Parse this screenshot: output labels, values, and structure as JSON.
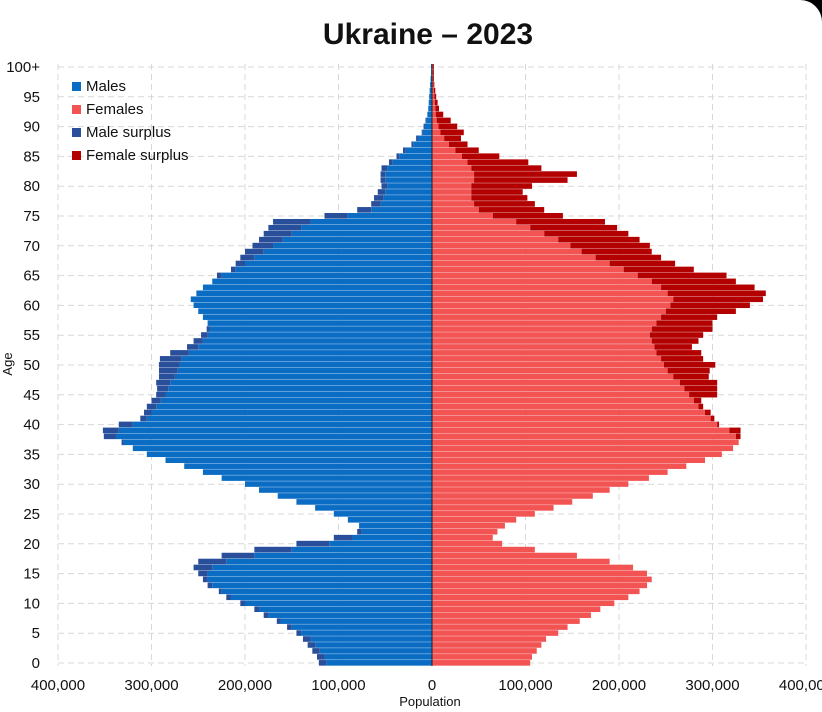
{
  "chart_data": {
    "type": "bar",
    "orientation": "horizontal-population-pyramid",
    "title": "Ukraine – 2023",
    "xlabel": "Population",
    "ylabel": "Age",
    "xlim": [
      -400000,
      400000
    ],
    "ylim": [
      0,
      101
    ],
    "x_ticks": [
      -400000,
      -300000,
      -200000,
      -100000,
      0,
      100000,
      200000,
      300000,
      400000
    ],
    "x_tick_labels": [
      "400,000",
      "300,000",
      "200,000",
      "100,000",
      "0",
      "100,000",
      "200,000",
      "300,000",
      "400,000"
    ],
    "y_ticks": [
      0,
      5,
      10,
      15,
      20,
      25,
      30,
      35,
      40,
      45,
      50,
      55,
      60,
      65,
      70,
      75,
      80,
      85,
      90,
      95,
      100
    ],
    "y_tick_labels": [
      "0",
      "5",
      "10",
      "15",
      "20",
      "25",
      "30",
      "35",
      "40",
      "45",
      "50",
      "55",
      "60",
      "65",
      "70",
      "75",
      "80",
      "85",
      "90",
      "95",
      "100+"
    ],
    "grid": true,
    "legend": {
      "position": "top-left",
      "entries": [
        {
          "label": "Males",
          "color": "#0b6cc4"
        },
        {
          "label": "Females",
          "color": "#f25454"
        },
        {
          "label": "Male surplus",
          "color": "#2a4f9a"
        },
        {
          "label": "Female surplus",
          "color": "#b30000"
        }
      ]
    },
    "ages": [
      0,
      1,
      2,
      3,
      4,
      5,
      6,
      7,
      8,
      9,
      10,
      11,
      12,
      13,
      14,
      15,
      16,
      17,
      18,
      19,
      20,
      21,
      22,
      23,
      24,
      25,
      26,
      27,
      28,
      29,
      30,
      31,
      32,
      33,
      34,
      35,
      36,
      37,
      38,
      39,
      40,
      41,
      42,
      43,
      44,
      45,
      46,
      47,
      48,
      49,
      50,
      51,
      52,
      53,
      54,
      55,
      56,
      57,
      58,
      59,
      60,
      61,
      62,
      63,
      64,
      65,
      66,
      67,
      68,
      69,
      70,
      71,
      72,
      73,
      74,
      75,
      76,
      77,
      78,
      79,
      80,
      81,
      82,
      83,
      84,
      85,
      86,
      87,
      88,
      89,
      90,
      91,
      92,
      93,
      94,
      95,
      96,
      97,
      98,
      99,
      100
    ],
    "series": [
      {
        "name": "Males",
        "values": [
          113000,
          115000,
          120000,
          125000,
          130000,
          140000,
          150000,
          162000,
          175000,
          185000,
          200000,
          215000,
          225000,
          235000,
          240000,
          240000,
          235000,
          220000,
          190000,
          150000,
          110000,
          85000,
          75000,
          78000,
          90000,
          105000,
          125000,
          145000,
          165000,
          185000,
          200000,
          225000,
          245000,
          265000,
          285000,
          305000,
          320000,
          330000,
          338000,
          335000,
          320000,
          305000,
          300000,
          295000,
          290000,
          285000,
          282000,
          280000,
          275000,
          272000,
          270000,
          268000,
          260000,
          250000,
          245000,
          240000,
          238000,
          240000,
          245000,
          250000,
          255000,
          258000,
          252000,
          245000,
          235000,
          225000,
          210000,
          200000,
          190000,
          180000,
          170000,
          160000,
          150000,
          140000,
          130000,
          90000,
          65000,
          55000,
          52000,
          50000,
          48000,
          50000,
          50000,
          48000,
          42000,
          35000,
          28000,
          20000,
          15000,
          10000,
          8000,
          6000,
          5000,
          4000,
          3500,
          3000,
          2500,
          2000,
          1500,
          1000,
          1000
        ]
      },
      {
        "name": "Females",
        "values": [
          105000,
          107000,
          112000,
          117000,
          122000,
          135000,
          145000,
          158000,
          170000,
          180000,
          195000,
          210000,
          222000,
          230000,
          235000,
          230000,
          215000,
          190000,
          155000,
          110000,
          75000,
          65000,
          70000,
          78000,
          90000,
          110000,
          130000,
          150000,
          172000,
          190000,
          210000,
          232000,
          252000,
          272000,
          292000,
          310000,
          322000,
          328000,
          325000,
          318000,
          305000,
          298000,
          292000,
          285000,
          280000,
          275000,
          270000,
          265000,
          258000,
          252000,
          248000,
          245000,
          240000,
          238000,
          235000,
          233000,
          235000,
          240000,
          245000,
          250000,
          255000,
          258000,
          252000,
          245000,
          235000,
          220000,
          205000,
          190000,
          175000,
          160000,
          148000,
          135000,
          120000,
          105000,
          90000,
          65000,
          50000,
          45000,
          42000,
          42000,
          42000,
          45000,
          45000,
          42000,
          38000,
          32000,
          25000,
          18000,
          13000,
          9000,
          7000,
          5000,
          4000,
          3500,
          3000,
          2500,
          2000,
          1500,
          1000,
          1000,
          1000
        ]
      },
      {
        "name": "Male surplus",
        "values": [
          8000,
          8000,
          8000,
          8000,
          8000,
          5000,
          5000,
          4000,
          5000,
          5000,
          5000,
          5000,
          3000,
          5000,
          5000,
          10000,
          20000,
          30000,
          35000,
          40000,
          35000,
          20000,
          5000,
          0,
          0,
          0,
          0,
          0,
          0,
          0,
          0,
          0,
          0,
          0,
          0,
          0,
          0,
          2000,
          13000,
          17000,
          15000,
          7000,
          8000,
          10000,
          10000,
          10000,
          12000,
          15000,
          17000,
          20000,
          22000,
          23000,
          20000,
          12000,
          10000,
          7000,
          3000,
          0,
          0,
          0,
          0,
          0,
          0,
          0,
          0,
          5000,
          5000,
          10000,
          15000,
          20000,
          22000,
          25000,
          30000,
          35000,
          40000,
          25000,
          15000,
          10000,
          10000,
          8000,
          6000,
          5000,
          5000,
          6000,
          4000,
          3000,
          3000,
          2000,
          2000,
          1000,
          1000,
          1000,
          0,
          0,
          0,
          0,
          0,
          0,
          0,
          0,
          0
        ]
      },
      {
        "name": "Female surplus",
        "values": [
          0,
          0,
          0,
          0,
          0,
          0,
          0,
          0,
          0,
          0,
          0,
          0,
          0,
          0,
          0,
          0,
          0,
          0,
          0,
          0,
          0,
          0,
          0,
          0,
          0,
          0,
          0,
          0,
          0,
          0,
          0,
          0,
          0,
          0,
          0,
          0,
          0,
          0,
          5000,
          12000,
          2000,
          4000,
          6000,
          5000,
          8000,
          30000,
          35000,
          40000,
          38000,
          45000,
          55000,
          45000,
          48000,
          40000,
          50000,
          57000,
          65000,
          60000,
          60000,
          75000,
          85000,
          96000,
          105000,
          100000,
          90000,
          95000,
          75000,
          70000,
          70000,
          75000,
          85000,
          87000,
          90000,
          93000,
          95000,
          75000,
          70000,
          65000,
          60000,
          55000,
          65000,
          100000,
          110000,
          75000,
          65000,
          40000,
          25000,
          20000,
          18000,
          25000,
          20000,
          15000,
          8000,
          4000,
          3000,
          2000,
          1500,
          1000,
          1000,
          1000,
          1000
        ]
      }
    ]
  }
}
